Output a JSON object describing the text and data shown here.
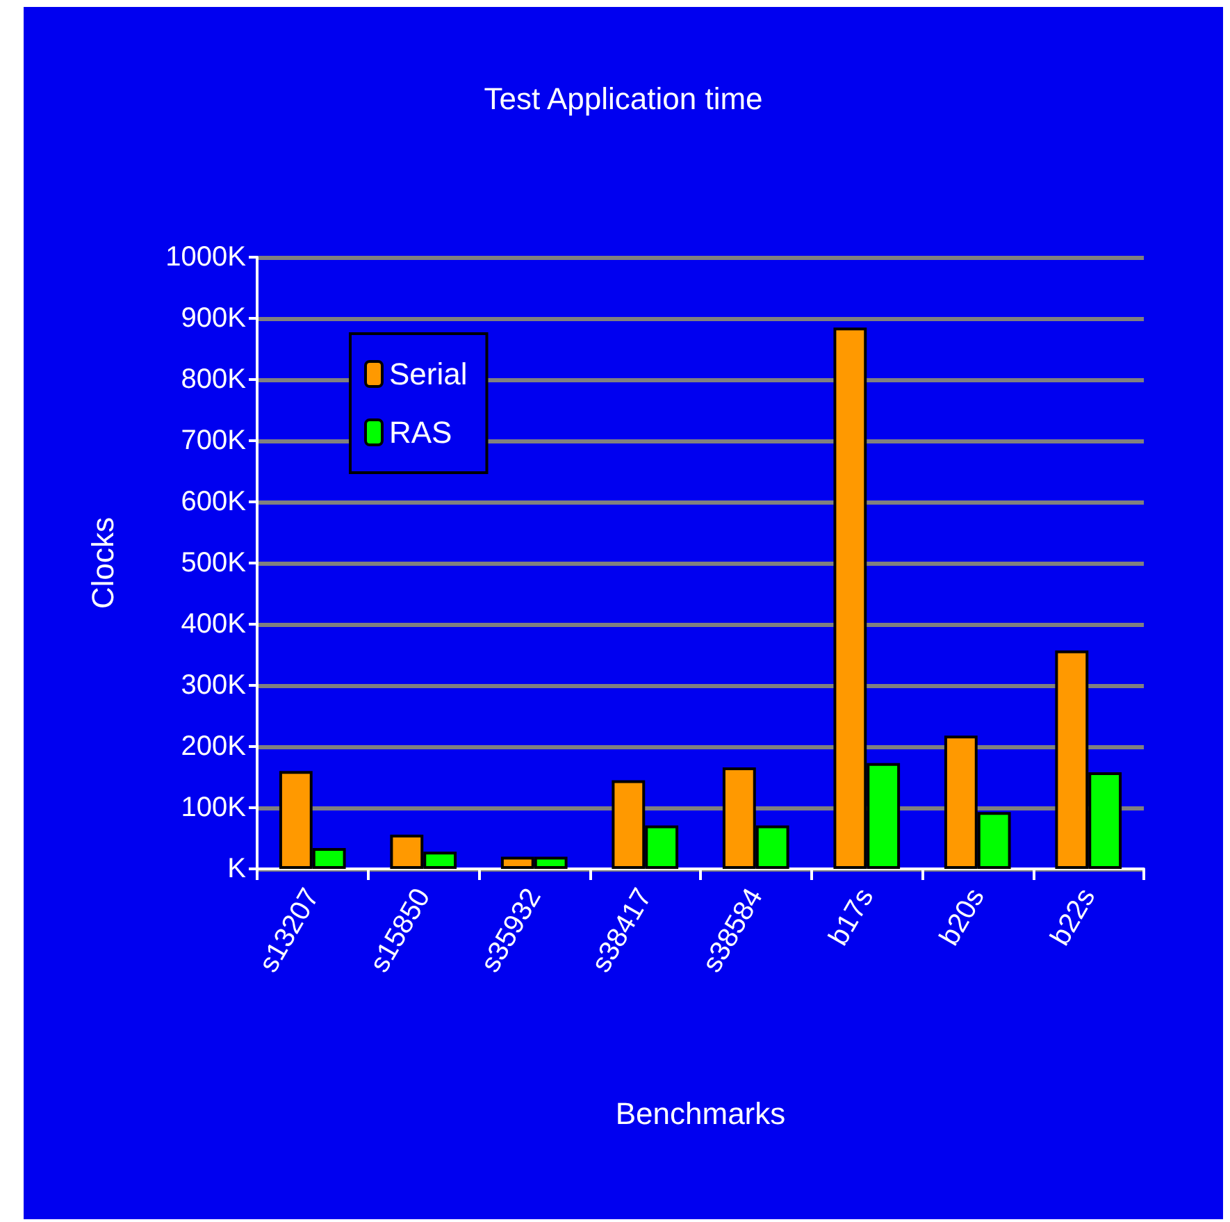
{
  "chart_data": {
    "type": "bar",
    "title": "Test Application time",
    "xlabel": "Benchmarks",
    "ylabel": "Clocks",
    "categories": [
      "s13207",
      "s15850",
      "s35932",
      "s38417",
      "s38584",
      "b17s",
      "b20s",
      "b22s"
    ],
    "series": [
      {
        "name": "Serial",
        "color": "#ff9900",
        "values": [
          160000,
          56000,
          20000,
          145000,
          166000,
          885000,
          218000,
          357000
        ]
      },
      {
        "name": "RAS",
        "color": "#00ff00",
        "values": [
          34000,
          28000,
          20000,
          71000,
          71000,
          173000,
          93000,
          158000
        ]
      }
    ],
    "ylim": [
      0,
      1000000
    ],
    "yticks": [
      {
        "value": 0,
        "label": "K"
      },
      {
        "value": 100000,
        "label": "100K"
      },
      {
        "value": 200000,
        "label": "200K"
      },
      {
        "value": 300000,
        "label": "300K"
      },
      {
        "value": 400000,
        "label": "400K"
      },
      {
        "value": 500000,
        "label": "500K"
      },
      {
        "value": 600000,
        "label": "600K"
      },
      {
        "value": 700000,
        "label": "700K"
      },
      {
        "value": 800000,
        "label": "800K"
      },
      {
        "value": 900000,
        "label": "900K"
      },
      {
        "value": 1000000,
        "label": "1000K"
      }
    ],
    "grid": "y",
    "legend": "top left"
  }
}
